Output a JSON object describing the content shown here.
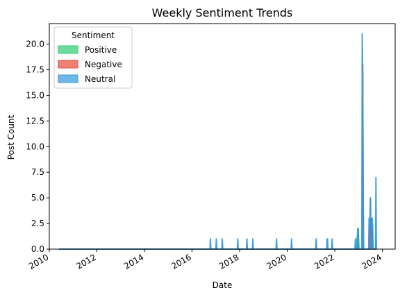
{
  "chart_data": {
    "type": "area",
    "title": "Weekly Sentiment Trends",
    "xlabel": "Date",
    "ylabel": "Post Count",
    "x_axis": "date",
    "xlim": [
      "2010-01-01",
      "2024-07-15"
    ],
    "ylim": [
      0,
      22
    ],
    "xticks": [
      "2010",
      "2012",
      "2014",
      "2016",
      "2018",
      "2020",
      "2022",
      "2024"
    ],
    "yticks": [
      "0.0",
      "2.5",
      "5.0",
      "7.5",
      "10.0",
      "12.5",
      "15.0",
      "17.5",
      "20.0"
    ],
    "legend": {
      "title": "Sentiment",
      "position": "top-left"
    },
    "series": [
      {
        "name": "Positive",
        "color": "#2ecc71",
        "points": [
          [
            "2010-06-01",
            0
          ],
          [
            "2022-11-20",
            0
          ],
          [
            "2022-12-25",
            2
          ],
          [
            "2023-01-08",
            0
          ],
          [
            "2023-02-26",
            0
          ],
          [
            "2023-03-05",
            2
          ],
          [
            "2023-03-12",
            0
          ],
          [
            "2023-06-18",
            0
          ],
          [
            "2023-06-25",
            2
          ],
          [
            "2023-07-02",
            3
          ],
          [
            "2023-07-16",
            0
          ],
          [
            "2023-07-23",
            2
          ],
          [
            "2023-08-06",
            0
          ],
          [
            "2023-10-01",
            0
          ]
        ]
      },
      {
        "name": "Negative",
        "color": "#e74c3c",
        "points": [
          [
            "2010-06-01",
            0
          ],
          [
            "2023-02-26",
            0
          ],
          [
            "2023-03-05",
            18
          ],
          [
            "2023-03-12",
            5
          ],
          [
            "2023-03-19",
            0
          ],
          [
            "2023-06-11",
            0
          ],
          [
            "2023-06-18",
            3
          ],
          [
            "2023-06-25",
            0
          ],
          [
            "2023-07-02",
            5
          ],
          [
            "2023-07-09",
            1
          ],
          [
            "2023-07-16",
            3
          ],
          [
            "2023-07-23",
            2
          ],
          [
            "2023-08-06",
            0
          ],
          [
            "2023-10-01",
            0
          ]
        ]
      },
      {
        "name": "Neutral",
        "color": "#3498db",
        "points": [
          [
            "2010-06-01",
            0
          ],
          [
            "2016-10-02",
            0
          ],
          [
            "2016-10-09",
            1
          ],
          [
            "2016-10-16",
            0
          ],
          [
            "2017-01-01",
            0
          ],
          [
            "2017-01-08",
            1
          ],
          [
            "2017-01-15",
            0
          ],
          [
            "2017-04-02",
            0
          ],
          [
            "2017-04-09",
            1
          ],
          [
            "2017-04-16",
            0
          ],
          [
            "2017-11-26",
            0
          ],
          [
            "2017-12-03",
            1
          ],
          [
            "2017-12-10",
            0
          ],
          [
            "2018-04-15",
            0
          ],
          [
            "2018-04-22",
            1
          ],
          [
            "2018-04-29",
            0
          ],
          [
            "2018-07-15",
            0
          ],
          [
            "2018-07-22",
            1
          ],
          [
            "2018-07-29",
            0
          ],
          [
            "2019-07-14",
            0
          ],
          [
            "2019-07-21",
            1
          ],
          [
            "2019-07-28",
            0
          ],
          [
            "2020-03-01",
            0
          ],
          [
            "2020-03-08",
            1
          ],
          [
            "2020-03-15",
            0
          ],
          [
            "2021-03-14",
            0
          ],
          [
            "2021-03-21",
            1
          ],
          [
            "2021-03-28",
            0
          ],
          [
            "2021-08-29",
            0
          ],
          [
            "2021-09-05",
            1
          ],
          [
            "2021-09-12",
            1
          ],
          [
            "2021-09-19",
            0
          ],
          [
            "2021-11-14",
            0
          ],
          [
            "2021-11-21",
            1
          ],
          [
            "2021-11-28",
            0
          ],
          [
            "2022-11-06",
            0
          ],
          [
            "2022-11-13",
            1
          ],
          [
            "2022-11-20",
            0
          ],
          [
            "2022-12-11",
            0
          ],
          [
            "2022-12-18",
            2
          ],
          [
            "2022-12-25",
            2
          ],
          [
            "2023-01-01",
            0
          ],
          [
            "2023-02-19",
            0
          ],
          [
            "2023-02-26",
            21
          ],
          [
            "2023-03-05",
            17
          ],
          [
            "2023-03-12",
            5
          ],
          [
            "2023-03-19",
            0
          ],
          [
            "2023-06-04",
            0
          ],
          [
            "2023-06-11",
            3
          ],
          [
            "2023-06-18",
            2
          ],
          [
            "2023-06-25",
            3
          ],
          [
            "2023-07-02",
            5
          ],
          [
            "2023-07-09",
            2
          ],
          [
            "2023-07-16",
            3
          ],
          [
            "2023-07-23",
            2
          ],
          [
            "2023-07-30",
            3
          ],
          [
            "2023-08-06",
            2
          ],
          [
            "2023-08-13",
            0
          ],
          [
            "2023-09-17",
            0
          ],
          [
            "2023-09-24",
            7
          ],
          [
            "2023-10-01",
            0
          ]
        ]
      }
    ]
  }
}
